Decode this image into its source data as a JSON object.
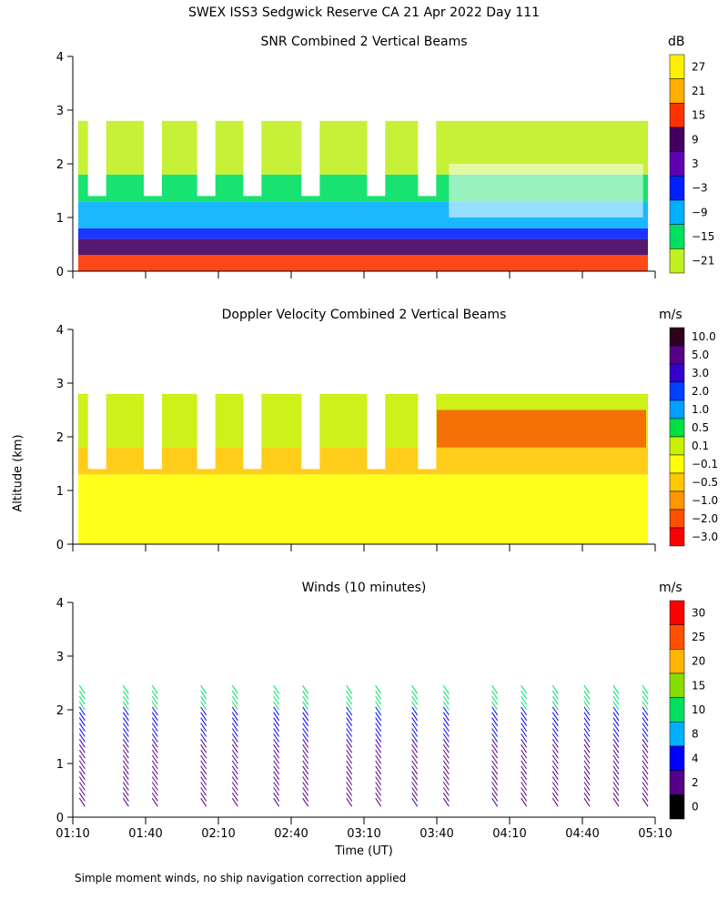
{
  "title": "SWEX ISS3 Sedgwick Reserve CA  21 Apr 2022 Day 111",
  "ylabel": "Altitude (km)",
  "xlabel": "Time (UT)",
  "footnote": "Simple moment winds, no ship navigation correction applied",
  "chart_data": [
    {
      "type": "heatmap",
      "title": "SNR Combined 2 Vertical Beams",
      "unit": "dB",
      "xlim": [
        "01:10",
        "05:10"
      ],
      "ylim": [
        0,
        4
      ],
      "yticks": [
        0,
        1,
        2,
        3,
        4
      ],
      "colorbar_ticks": [
        "27",
        "21",
        "15",
        "9",
        "3",
        "−3",
        "−9",
        "−15",
        "−21"
      ],
      "colors": [
        "#fff000",
        "#ffae00",
        "#ff3300",
        "#440060",
        "#6000b0",
        "#0020ff",
        "#00b0ff",
        "#00e060",
        "#c0f020"
      ],
      "bands_km": [
        {
          "bottom": 0.0,
          "top": 0.3,
          "color": "#ff3300"
        },
        {
          "bottom": 0.3,
          "top": 0.6,
          "color": "#440060"
        },
        {
          "bottom": 0.6,
          "top": 0.8,
          "color": "#0020ff"
        },
        {
          "bottom": 0.8,
          "top": 1.3,
          "color": "#00b0ff"
        },
        {
          "bottom": 1.3,
          "top": 1.8,
          "color": "#00e060"
        },
        {
          "bottom": 1.8,
          "top": 2.8,
          "color": "#c0f020"
        }
      ]
    },
    {
      "type": "heatmap",
      "title": "Doppler Velocity Combined 2 Vertical Beams",
      "unit": "m/s",
      "xlim": [
        "01:10",
        "05:10"
      ],
      "ylim": [
        0,
        4
      ],
      "yticks": [
        0,
        1,
        2,
        3,
        4
      ],
      "colorbar_ticks": [
        "10.0",
        "5.0",
        "3.0",
        "2.0",
        "1.0",
        "0.5",
        "0.1",
        "−0.1",
        "−0.5",
        "−1.0",
        "−2.0",
        "−3.0"
      ],
      "colors": [
        "#300020",
        "#550088",
        "#3300cc",
        "#0040ff",
        "#00a0ff",
        "#00e040",
        "#c8f000",
        "#ffff00",
        "#ffc800",
        "#ff9600",
        "#ff5000",
        "#ff0000"
      ],
      "bands_km": [
        {
          "bottom": 0.0,
          "top": 1.3,
          "color": "#ffff00"
        },
        {
          "bottom": 1.3,
          "top": 1.8,
          "color": "#ffc800"
        },
        {
          "bottom": 1.8,
          "top": 2.8,
          "color": "#c8f000"
        }
      ]
    },
    {
      "type": "scatter",
      "title": "Winds (10 minutes)",
      "unit": "m/s",
      "xlim": [
        "01:10",
        "05:10"
      ],
      "ylim": [
        0,
        4
      ],
      "yticks": [
        0,
        1,
        2,
        3,
        4
      ],
      "xticks": [
        "01:10",
        "01:40",
        "02:10",
        "02:40",
        "03:10",
        "03:40",
        "04:10",
        "04:40",
        "05:10"
      ],
      "colorbar_ticks": [
        "30",
        "25",
        "20",
        "15",
        "10",
        "8",
        "4",
        "2",
        "0"
      ],
      "colors": [
        "#ff0000",
        "#ff5000",
        "#ffb400",
        "#88dd00",
        "#00e060",
        "#00b0ff",
        "#0000ff",
        "#550088",
        "#000000"
      ],
      "profile_times": [
        "01:15",
        "01:33",
        "01:45",
        "02:05",
        "02:18",
        "02:35",
        "02:47",
        "03:05",
        "03:17",
        "03:32",
        "03:45",
        "04:05",
        "04:17",
        "04:30",
        "04:43",
        "04:55",
        "05:07"
      ]
    }
  ]
}
